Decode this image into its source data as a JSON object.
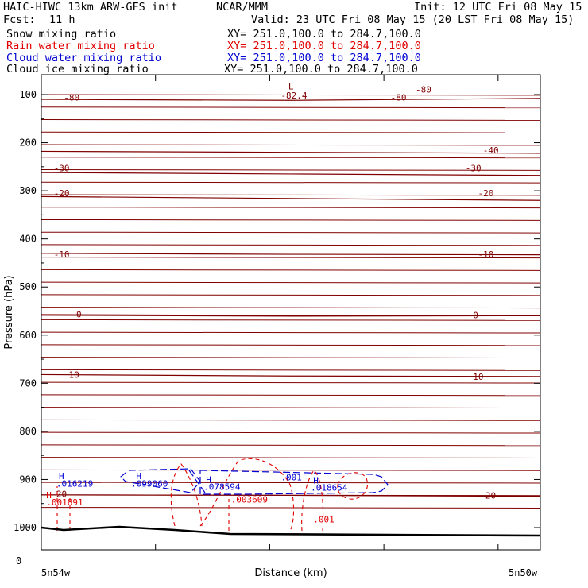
{
  "header": {
    "model": "HAIC-HIWC 13km ARW-GFS init",
    "org": "NCAR/MMM",
    "init": "Init: 12 UTC Fri 08 May 15",
    "fcst_label": "Fcst:",
    "fcst_value": "11 h",
    "valid": "Valid: 23 UTC Fri 08 May 15 (20 LST Fri 08 May 15)"
  },
  "legend": [
    {
      "name": "Snow mixing ratio",
      "xy": "XY= 251.0,100.0 to 284.7,100.0",
      "color": "#000000"
    },
    {
      "name": "Rain water mixing ratio",
      "xy": "XY= 251.0,100.0 to 284.7,100.0",
      "color": "#e00000"
    },
    {
      "name": "Cloud water mixing ratio",
      "xy": "XY= 251.0,100.0 to 284.7,100.0",
      "color": "#0000d0"
    },
    {
      "name": "Cloud ice mixing ratio",
      "xy": "XY= 251.0,100.0 to 284.7,100.0",
      "color": "#000000"
    }
  ],
  "chart_data": {
    "type": "line",
    "xlabel": "Distance (km)",
    "ylabel": "Pressure (hPa)",
    "x_start_label": "5n54w",
    "x_end_label": "5n50w",
    "x_zero_label": "0",
    "y_tick_labels": [
      "100",
      "200",
      "300",
      "400",
      "500",
      "600",
      "700",
      "800",
      "900",
      "1000"
    ],
    "y_ticks": [
      100,
      200,
      300,
      400,
      500,
      600,
      700,
      800,
      900,
      1000
    ],
    "temperature_color": "#800000",
    "temperature_contours": [
      {
        "label": "-80",
        "p": [
          110,
          112,
          108
        ]
      },
      {
        "label": "-40",
        "p": [
          218,
          220,
          222
        ]
      },
      {
        "label": "-30",
        "p": [
          262,
          265,
          268
        ]
      },
      {
        "label": "-20",
        "p": [
          312,
          316,
          320
        ]
      },
      {
        "label": "-10",
        "p": [
          430,
          432,
          433
        ]
      },
      {
        "label": "0",
        "p": [
          558,
          560,
          559
        ]
      },
      {
        "label": "10",
        "p": [
          682,
          685,
          686
        ]
      },
      {
        "label": "20",
        "p": [
          932,
          933,
          935
        ]
      }
    ],
    "temperature_labels": [
      {
        "text": "-80",
        "x_frac": 0.045,
        "p": 106
      },
      {
        "text": "-80",
        "x_frac": 0.7,
        "p": 106
      },
      {
        "text": "-80",
        "x_frac": 0.75,
        "p": 89
      },
      {
        "text": "-82.4",
        "x_frac": 0.48,
        "p": 102
      },
      {
        "text": "L",
        "x_frac": 0.495,
        "p": 83
      },
      {
        "text": "-40",
        "x_frac": 0.885,
        "p": 216
      },
      {
        "text": "-30",
        "x_frac": 0.025,
        "p": 253
      },
      {
        "text": "-30",
        "x_frac": 0.85,
        "p": 253
      },
      {
        "text": "-20",
        "x_frac": 0.025,
        "p": 305
      },
      {
        "text": "-20",
        "x_frac": 0.875,
        "p": 305
      },
      {
        "text": "-10",
        "x_frac": 0.025,
        "p": 432
      },
      {
        "text": "-10",
        "x_frac": 0.875,
        "p": 432
      },
      {
        "text": "0",
        "x_frac": 0.07,
        "p": 557
      },
      {
        "text": "0",
        "x_frac": 0.865,
        "p": 558
      },
      {
        "text": "10",
        "x_frac": 0.055,
        "p": 682
      },
      {
        "text": "10",
        "x_frac": 0.865,
        "p": 686
      },
      {
        "text": "20",
        "x_frac": 0.89,
        "p": 933
      },
      {
        "text": "20",
        "x_frac": 0.03,
        "p": 930
      }
    ],
    "cloud_water_labels": [
      {
        "text": "H",
        "x_frac": 0.035,
        "p": 893
      },
      {
        "text": ".016219",
        "x_frac": 0.03,
        "p": 908
      },
      {
        "text": "H",
        "x_frac": 0.19,
        "p": 893
      },
      {
        "text": ".099060",
        "x_frac": 0.18,
        "p": 908
      },
      {
        "text": "H",
        "x_frac": 0.33,
        "p": 900
      },
      {
        "text": ".078594",
        "x_frac": 0.325,
        "p": 915
      },
      {
        "text": ".001",
        "x_frac": 0.48,
        "p": 895
      },
      {
        "text": "H",
        "x_frac": 0.545,
        "p": 902
      },
      {
        "text": ".018654",
        "x_frac": 0.54,
        "p": 917
      }
    ],
    "rain_labels": [
      {
        "text": "H",
        "x_frac": 0.01,
        "p": 932
      },
      {
        "text": ".001891",
        "x_frac": 0.01,
        "p": 947
      },
      {
        "text": ".003609",
        "x_frac": 0.38,
        "p": 941
      },
      {
        "text": ".001",
        "x_frac": 0.545,
        "p": 983
      }
    ]
  }
}
